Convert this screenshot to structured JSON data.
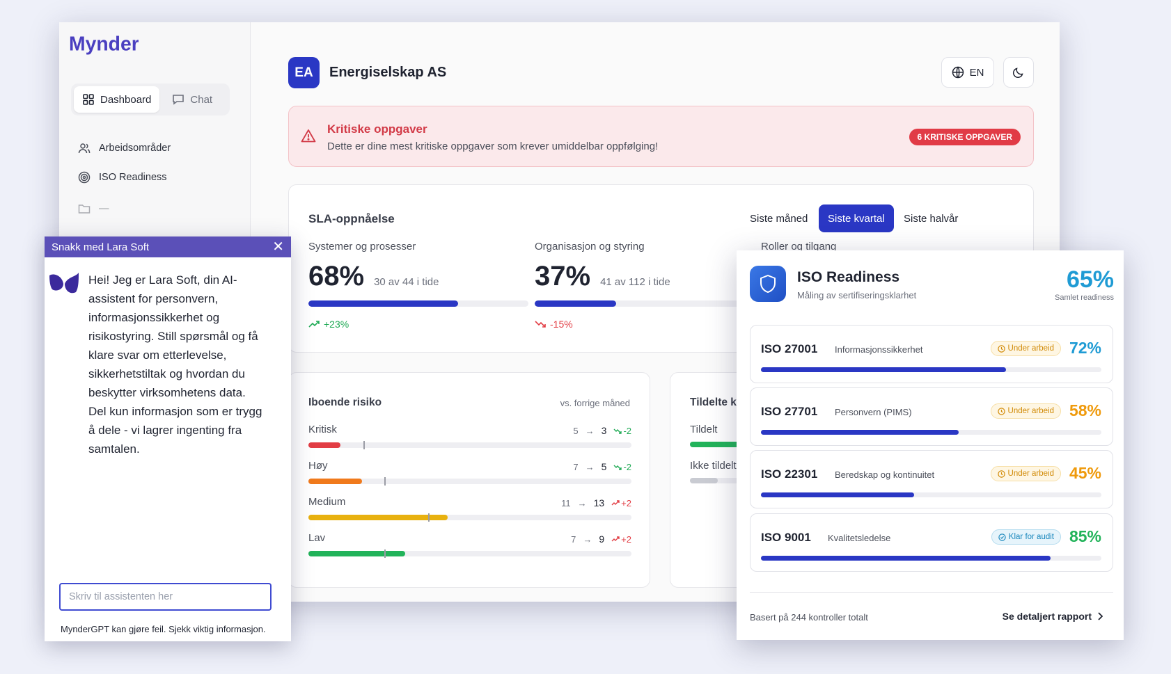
{
  "sidebar": {
    "logo": "Mynder",
    "toggle": {
      "dashboard": "Dashboard",
      "chat": "Chat"
    },
    "items": [
      {
        "label": "Arbeidsområder",
        "icon": "users-icon"
      },
      {
        "label": "ISO Readiness",
        "icon": "target-icon"
      },
      {
        "label": "—",
        "icon": "folder-icon"
      }
    ]
  },
  "header": {
    "org_initials": "EA",
    "org_name": "Energiselskap AS",
    "lang": "EN"
  },
  "alert": {
    "title": "Kritiske oppgaver",
    "text": "Dette er dine mest kritiske oppgaver som krever umiddelbar oppfølging!",
    "badge": "6 KRITISKE OPPGAVER",
    "color": "#e13b46"
  },
  "sla": {
    "title": "SLA-oppnåelse",
    "periods": [
      "Siste måned",
      "Siste kvartal",
      "Siste halvår"
    ],
    "active_period": "Siste kvartal",
    "metrics": [
      {
        "label": "Systemer og prosesser",
        "pct": "68%",
        "sub": "30 av 44 i tide",
        "fill": 68,
        "trend": "+23%",
        "trend_dir": "up"
      },
      {
        "label": "Organisasjon og styring",
        "pct": "37%",
        "sub": "41 av 112 i tide",
        "fill": 37,
        "trend": "-15%",
        "trend_dir": "down"
      },
      {
        "label": "Roller og tilgang"
      }
    ]
  },
  "risk": {
    "title": "Iboende risiko",
    "vs": "vs. forrige måned",
    "rows": [
      {
        "label": "Kritisk",
        "prev": "5",
        "now": "3",
        "delta": "-2",
        "fill": 10,
        "mark": 17,
        "color": "#e23d44",
        "delta_color": "#1faa55"
      },
      {
        "label": "Høy",
        "prev": "7",
        "now": "5",
        "delta": "-2",
        "fill": 16.5,
        "mark": 23.5,
        "color": "#f07a1c",
        "delta_color": "#1faa55"
      },
      {
        "label": "Medium",
        "prev": "11",
        "now": "13",
        "delta": "+2",
        "fill": 43,
        "mark": 37,
        "color": "#e8b10f",
        "delta_color": "#e23d44"
      },
      {
        "label": "Lav",
        "prev": "7",
        "now": "9",
        "delta": "+2",
        "fill": 30,
        "mark": 23.5,
        "color": "#22b35a",
        "delta_color": "#e23d44"
      }
    ]
  },
  "assigned": {
    "title": "Tildelte kontroller",
    "rows": [
      {
        "label": "Tildelt",
        "color": "#22b35a"
      },
      {
        "label": "Ikke tildelt",
        "color": "#c9cbd2"
      }
    ]
  },
  "chat": {
    "title": "Snakk med Lara Soft",
    "message": "Hei! Jeg er Lara Soft, din AI-assistent for personvern, informasjonssikkerhet og risikostyring. Still spørsmål og få klare svar om etterlevelse, sikkerhetstiltak og hvordan du beskytter virksomhetens data. Del kun informasjon som er trygg å dele - vi lagrer ingenting fra samtalen.",
    "placeholder": "Skriv til assistenten her",
    "footer": "MynderGPT kan gjøre feil. Sjekk viktig informasjon.",
    "header_color": "#5b50b8"
  },
  "iso": {
    "title": "ISO Readiness",
    "subtitle": "Måling av sertifiseringsklarhet",
    "total": "65%",
    "total_label": "Samlet readiness",
    "standards": [
      {
        "code": "ISO 27001",
        "name": "Informasjonssikkerhet",
        "status": "Under arbeid",
        "status_type": "work",
        "pct": "72%",
        "fill": 72,
        "color": "#1f9bd4"
      },
      {
        "code": "ISO 27701",
        "name": "Personvern (PIMS)",
        "status": "Under arbeid",
        "status_type": "work",
        "pct": "58%",
        "fill": 58,
        "color": "#ef9a0c"
      },
      {
        "code": "ISO 22301",
        "name": "Beredskap og kontinuitet",
        "status": "Under arbeid",
        "status_type": "work",
        "pct": "45%",
        "fill": 45,
        "color": "#ef9a0c"
      },
      {
        "code": "ISO 9001",
        "name": "Kvalitetsledelse",
        "status": "Klar for audit",
        "status_type": "ready",
        "pct": "85%",
        "fill": 85,
        "color": "#22b35a"
      }
    ],
    "basis": "Basert på 244 kontroller totalt",
    "link": "Se detaljert rapport"
  }
}
